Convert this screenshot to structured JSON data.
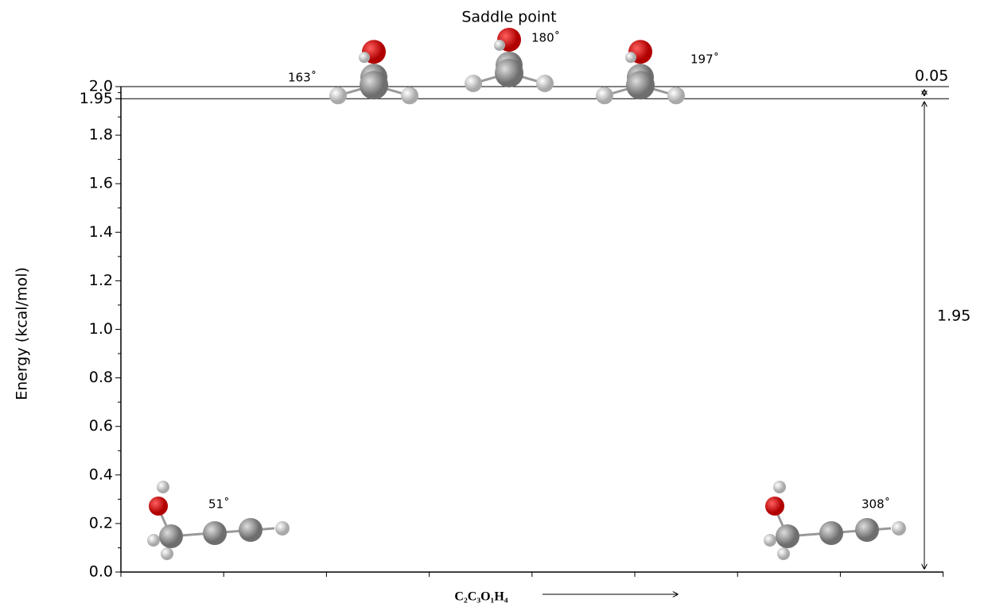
{
  "chart_data": {
    "type": "energy-diagram",
    "y_label": "Energy (kcal/mol)",
    "x_label": "C₂C₃O₁H₄",
    "ylim": [
      0,
      2
    ],
    "yticks": [
      {
        "value": 0,
        "label": "0.0"
      },
      0.2,
      0.4,
      0.6,
      0.8,
      {
        "value": 1,
        "label": "1.0"
      },
      1.2,
      1.4,
      1.6,
      1.8,
      1.95,
      {
        "value": 2,
        "label": "2.0"
      }
    ],
    "reference_lines": [
      2,
      1.95
    ],
    "energy_gaps": [
      {
        "from": 1.95,
        "value": 0.05
      },
      {
        "from": 0,
        "value": 1.95
      }
    ],
    "conformers": [
      {
        "angle_label": "51˚",
        "energy": 0,
        "shape": "flat"
      },
      {
        "angle_label": "163˚",
        "energy": 1.95,
        "shape": "top"
      },
      {
        "angle_label": "180˚",
        "energy": 2,
        "shape": "top",
        "note": "Saddle point"
      },
      {
        "angle_label": "197˚",
        "energy": 1.95,
        "shape": "top"
      },
      {
        "angle_label": "308˚",
        "energy": 0,
        "shape": "flat"
      }
    ]
  }
}
